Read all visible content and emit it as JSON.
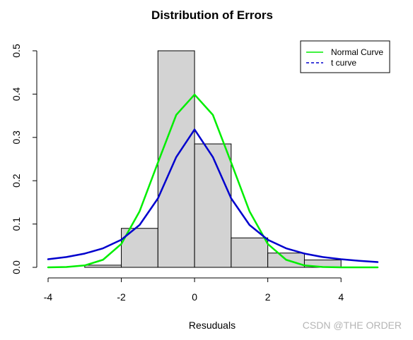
{
  "chart_data": {
    "type": "histogram",
    "title": "Distribution of Errors",
    "xlabel": "Resuduals",
    "ylabel": "",
    "xlim": [
      -4,
      5
    ],
    "ylim": [
      0,
      0.5
    ],
    "x_ticks": [
      -4,
      -2,
      0,
      2,
      4
    ],
    "x_tick_labels": [
      "-4",
      "-2",
      "0",
      "2",
      "4"
    ],
    "y_ticks": [
      0.0,
      0.1,
      0.2,
      0.3,
      0.4,
      0.5
    ],
    "y_tick_labels": [
      "0.0",
      "0.1",
      "0.2",
      "0.3",
      "0.4",
      "0.5"
    ],
    "bins": [
      {
        "x0": -3,
        "x1": -2,
        "density": 0.005
      },
      {
        "x0": -2,
        "x1": -1,
        "density": 0.09
      },
      {
        "x0": -1,
        "x1": 0,
        "density": 0.5
      },
      {
        "x0": 0,
        "x1": 1,
        "density": 0.285
      },
      {
        "x0": 1,
        "x1": 2,
        "density": 0.068
      },
      {
        "x0": 2,
        "x1": 3,
        "density": 0.033
      },
      {
        "x0": 3,
        "x1": 4,
        "density": 0.017
      }
    ],
    "bar_fill": "#d3d3d3",
    "bar_stroke": "#000000",
    "series": [
      {
        "name": "Normal Curve",
        "color": "#00ee00",
        "x": [
          -4.0,
          -3.5,
          -3.0,
          -2.5,
          -2.0,
          -1.5,
          -1.0,
          -0.5,
          0.0,
          0.5,
          1.0,
          1.5,
          2.0,
          2.5,
          3.0,
          3.5,
          4.0,
          4.5,
          5.0
        ],
        "y": [
          0.0001,
          0.0009,
          0.0044,
          0.0175,
          0.054,
          0.1295,
          0.242,
          0.352,
          0.3989,
          0.352,
          0.242,
          0.1295,
          0.054,
          0.0175,
          0.0044,
          0.0009,
          0.0001,
          0.0,
          0.0
        ]
      },
      {
        "name": "t curve",
        "color": "#0000cd",
        "x": [
          -4.0,
          -3.5,
          -3.0,
          -2.5,
          -2.0,
          -1.5,
          -1.0,
          -0.5,
          0.0,
          0.5,
          1.0,
          1.5,
          2.0,
          2.5,
          3.0,
          3.5,
          4.0,
          4.5,
          5.0
        ],
        "y": [
          0.0187,
          0.0238,
          0.0318,
          0.0439,
          0.0637,
          0.0979,
          0.1592,
          0.2546,
          0.3183,
          0.2546,
          0.1592,
          0.0979,
          0.0637,
          0.0439,
          0.0318,
          0.0238,
          0.0187,
          0.0151,
          0.0122
        ]
      }
    ],
    "legend": {
      "position": "top-right",
      "entries": [
        {
          "label": "Normal Curve",
          "color": "#00ee00",
          "style": "solid"
        },
        {
          "label": "t curve",
          "color": "#0000cd",
          "style": "dashed"
        }
      ]
    },
    "grid": false
  },
  "watermark": "CSDN @THE ORDER"
}
